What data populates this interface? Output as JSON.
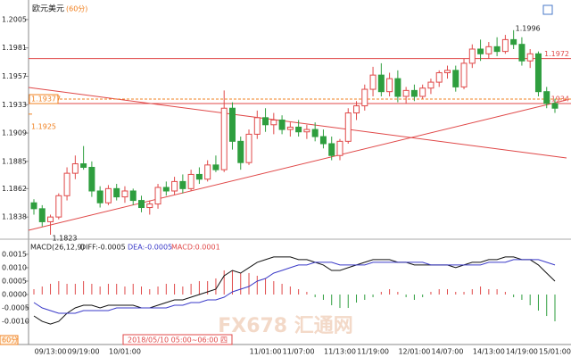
{
  "chart_data": [
    {
      "type": "candlestick",
      "title": "欧元美元",
      "subtitle": "(60分)",
      "period_label": "60分",
      "cursor_label": "2018/05/10 05:00~06:00 四",
      "watermark": "FX678 汇通网",
      "categories": [
        null,
        null,
        "09/13:00",
        null,
        null,
        null,
        "09/19:00",
        null,
        null,
        null,
        null,
        "10/01:00",
        null,
        null,
        null,
        null,
        null,
        null,
        null,
        null,
        null,
        null,
        null,
        null,
        null,
        null,
        null,
        null,
        "11/01:00",
        null,
        null,
        null,
        "11/07:00",
        null,
        null,
        null,
        null,
        "11/13:00",
        null,
        null,
        null,
        "11/19:00",
        null,
        null,
        null,
        null,
        "12/01:00",
        null,
        null,
        null,
        "14/07:00",
        null,
        null,
        null,
        null,
        "14/13:00",
        null,
        null,
        null,
        "14/19:00",
        null,
        null,
        null,
        "15/01:00"
      ],
      "open": [
        1.185,
        1.1845,
        1.1834,
        1.1838,
        1.1856,
        1.1875,
        1.1883,
        1.188,
        1.186,
        1.185,
        1.1862,
        1.1855,
        1.186,
        1.1852,
        1.1846,
        1.1849,
        1.1863,
        1.186,
        1.1868,
        1.1862,
        1.1874,
        1.187,
        1.1882,
        1.1878,
        1.193,
        1.1902,
        1.1884,
        1.1908,
        1.1922,
        1.1916,
        1.192,
        1.1912,
        1.1914,
        1.191,
        1.1912,
        1.1906,
        1.19,
        1.189,
        1.1902,
        1.1926,
        1.1932,
        1.1946,
        1.1958,
        1.1944,
        1.1955,
        1.194,
        1.1945,
        1.194,
        1.1947,
        1.1952,
        1.196,
        1.1962,
        1.1948,
        1.1968,
        1.198,
        1.1976,
        1.1982,
        1.1978,
        1.1988,
        1.1984,
        1.197,
        1.1976,
        1.1944,
        1.1934
      ],
      "high": [
        1.1853,
        1.1848,
        1.184,
        1.1858,
        1.188,
        1.189,
        1.1898,
        1.1885,
        1.1864,
        1.1865,
        1.1866,
        1.1864,
        1.1862,
        1.1856,
        1.1852,
        1.1866,
        1.1868,
        1.1872,
        1.1874,
        1.1878,
        1.188,
        1.1886,
        1.189,
        1.1945,
        1.1935,
        1.1906,
        1.1912,
        1.1928,
        1.193,
        1.1926,
        1.1924,
        1.1918,
        1.192,
        1.1916,
        1.1918,
        1.1912,
        1.1906,
        1.1904,
        1.193,
        1.1936,
        1.195,
        1.1965,
        1.1968,
        1.196,
        1.1962,
        1.1948,
        1.195,
        1.195,
        1.1955,
        1.1962,
        1.1966,
        1.1966,
        1.1972,
        1.1984,
        1.1988,
        1.1986,
        1.199,
        1.1992,
        1.1996,
        1.199,
        1.198,
        1.1978,
        1.1948,
        1.1938
      ],
      "low": [
        1.184,
        1.183,
        1.1823,
        1.1836,
        1.1852,
        1.187,
        1.1878,
        1.1855,
        1.1846,
        1.1848,
        1.1852,
        1.185,
        1.1848,
        1.1842,
        1.184,
        1.1845,
        1.1856,
        1.1857,
        1.1858,
        1.186,
        1.1866,
        1.1868,
        1.1876,
        1.1876,
        1.1895,
        1.1878,
        1.1882,
        1.1904,
        1.191,
        1.1908,
        1.1908,
        1.1906,
        1.1906,
        1.1904,
        1.1902,
        1.1896,
        1.1886,
        1.1886,
        1.19,
        1.192,
        1.1928,
        1.194,
        1.194,
        1.194,
        1.1935,
        1.1934,
        1.1936,
        1.1938,
        1.1942,
        1.1948,
        1.1955,
        1.1944,
        1.1946,
        1.1964,
        1.197,
        1.1972,
        1.1974,
        1.1976,
        1.198,
        1.1966,
        1.1964,
        1.194,
        1.193,
        1.1926
      ],
      "close": [
        1.1845,
        1.1834,
        1.1838,
        1.1856,
        1.1875,
        1.1883,
        1.188,
        1.186,
        1.185,
        1.1862,
        1.1855,
        1.186,
        1.1852,
        1.1846,
        1.1849,
        1.1863,
        1.186,
        1.1868,
        1.1862,
        1.1874,
        1.187,
        1.1882,
        1.1878,
        1.193,
        1.1902,
        1.1884,
        1.1908,
        1.1922,
        1.1916,
        1.192,
        1.1912,
        1.1914,
        1.191,
        1.1912,
        1.1906,
        1.19,
        1.189,
        1.1902,
        1.1926,
        1.1932,
        1.1946,
        1.1958,
        1.1944,
        1.1955,
        1.194,
        1.1945,
        1.194,
        1.1947,
        1.1952,
        1.196,
        1.1962,
        1.1948,
        1.1968,
        1.198,
        1.1976,
        1.1982,
        1.1978,
        1.1988,
        1.1984,
        1.197,
        1.1976,
        1.1944,
        1.1934,
        1.193
      ],
      "up_color": "#e04848",
      "down_color": "#2e9e3e",
      "ylim": [
        1.18215,
        1.20215
      ],
      "yticks": [
        1.1838,
        1.1862,
        1.1885,
        1.1909,
        1.1933,
        1.1957,
        1.1981,
        1.2005
      ],
      "levels": [
        1.1972,
        1.1934
      ],
      "level_color": "#e04848",
      "marks": [
        1.19377,
        1.1925
      ],
      "mark_color": "#f08020"
    },
    {
      "type": "macd",
      "title": "MACD(26,12,9)",
      "diff_label": "DIFF:-0.0005",
      "dea_label": "DEA:-0.0005",
      "macd_label": "MACD:0.0001",
      "diff_color": "#111111",
      "dea_color": "#3a3ac8",
      "up_color": "#e04848",
      "down_color": "#2e9e3e",
      "ylim": [
        -0.00183,
        0.00193
      ],
      "yticks": [
        {
          "value": -0.001,
          "label": "-0.0010"
        },
        -0.0005,
        {
          "value": 0,
          "label": "0.0000"
        },
        0.0005,
        {
          "value": 0.001,
          "label": "0.0010"
        },
        0.0015
      ],
      "diff": [
        -0.0008,
        -0.001,
        -0.0011,
        -0.001,
        -0.0007,
        -0.0005,
        -0.0004,
        -0.0004,
        -0.0005,
        -0.0004,
        -0.0004,
        -0.0004,
        -0.0004,
        -0.0005,
        -0.0005,
        -0.0004,
        -0.0003,
        -0.0002,
        -0.0002,
        -0.0001,
        0.0,
        0.0001,
        0.0002,
        0.0007,
        0.0009,
        0.0008,
        0.001,
        0.0012,
        0.0013,
        0.0014,
        0.0014,
        0.0014,
        0.0013,
        0.0013,
        0.0012,
        0.0011,
        0.0009,
        0.0009,
        0.001,
        0.0011,
        0.0012,
        0.0013,
        0.0013,
        0.0013,
        0.0012,
        0.0012,
        0.0011,
        0.0011,
        0.0011,
        0.0011,
        0.0011,
        0.001,
        0.0011,
        0.0012,
        0.0012,
        0.0013,
        0.0013,
        0.0014,
        0.0014,
        0.0013,
        0.0013,
        0.0011,
        0.0008,
        0.0005
      ],
      "dea": [
        -0.0003,
        -0.0005,
        -0.0006,
        -0.0007,
        -0.0007,
        -0.0007,
        -0.0006,
        -0.0006,
        -0.0006,
        -0.0006,
        -0.0005,
        -0.0005,
        -0.0005,
        -0.0005,
        -0.0005,
        -0.0005,
        -0.0005,
        -0.0004,
        -0.0004,
        -0.0003,
        -0.0003,
        -0.0002,
        -0.0002,
        -0.0001,
        0.0001,
        0.0002,
        0.0003,
        0.0005,
        0.0006,
        0.0008,
        0.0009,
        0.001,
        0.0011,
        0.0011,
        0.0012,
        0.0012,
        0.0012,
        0.0011,
        0.0011,
        0.0011,
        0.0011,
        0.0012,
        0.0012,
        0.0012,
        0.0012,
        0.0012,
        0.0012,
        0.0012,
        0.0011,
        0.0011,
        0.0011,
        0.0011,
        0.0011,
        0.0011,
        0.0011,
        0.0012,
        0.0012,
        0.0012,
        0.0013,
        0.0013,
        0.0013,
        0.0013,
        0.0012,
        0.0011
      ],
      "hist": [
        0.0002,
        0.0003,
        0.0004,
        0.0005,
        0.0004,
        0.0004,
        0.0005,
        0.0004,
        0.0003,
        0.0004,
        0.0004,
        0.0003,
        0.0004,
        0.0003,
        0.0002,
        0.0003,
        0.0004,
        0.0004,
        0.0003,
        0.0004,
        0.0005,
        0.0005,
        0.0006,
        0.0009,
        0.0009,
        0.0008,
        0.0008,
        0.0007,
        0.0006,
        0.0005,
        0.0004,
        0.0003,
        0.0002,
        0.0001,
        -0.0001,
        -0.0002,
        -0.0004,
        -0.0005,
        -0.0005,
        -0.0003,
        -0.0002,
        -0.0001,
        0.0001,
        0.0002,
        0.0001,
        -0.0001,
        -0.0002,
        -0.0001,
        0.0001,
        0.0002,
        0.0002,
        0.0001,
        0.0001,
        0.0002,
        0.0003,
        0.0002,
        0.0002,
        0.0001,
        -0.0001,
        -0.0002,
        -0.0004,
        -0.0006,
        -0.0008,
        -0.001
      ]
    }
  ]
}
